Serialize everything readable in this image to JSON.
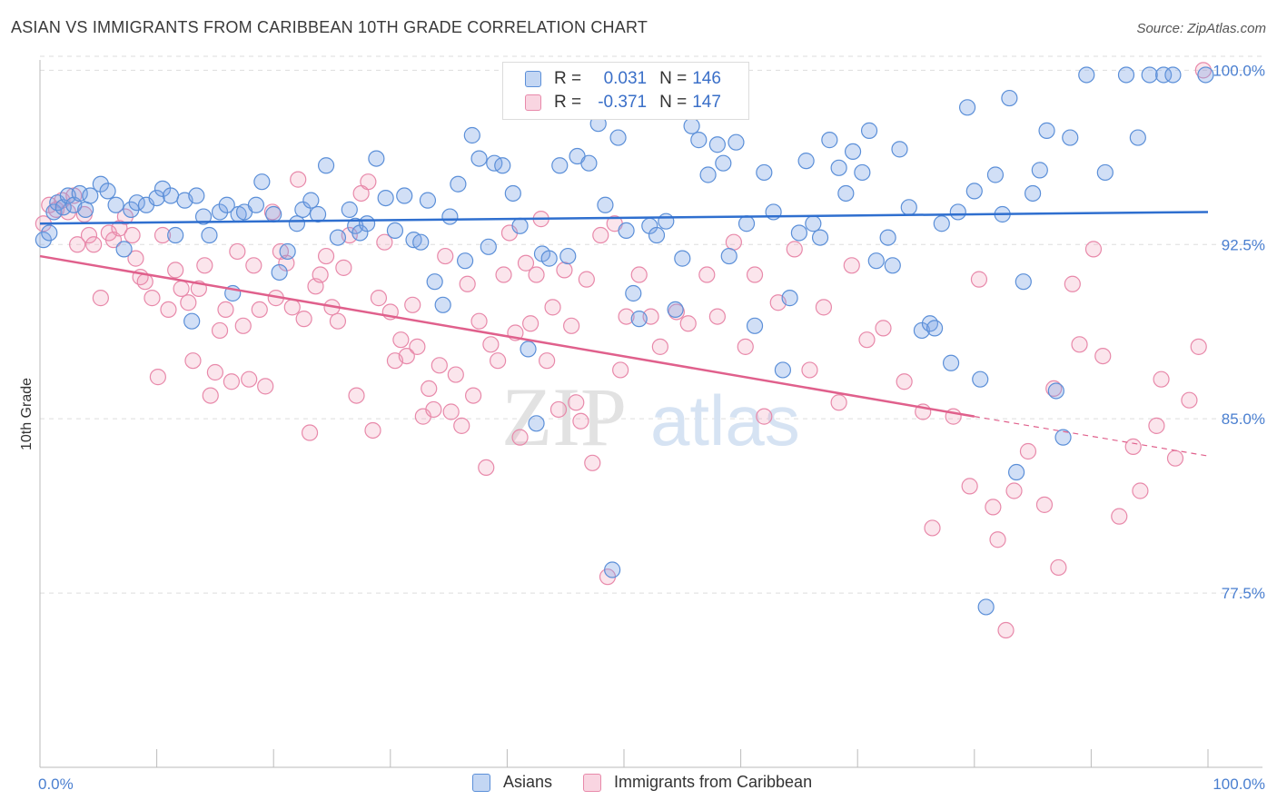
{
  "header": {
    "title": "ASIAN VS IMMIGRANTS FROM CARIBBEAN 10TH GRADE CORRELATION CHART",
    "source": "Source: ZipAtlas.com"
  },
  "watermark": {
    "part1": "ZIP",
    "part2": "atlas"
  },
  "legend": {
    "r_label": "R =",
    "n_label": "N =",
    "rows": [
      {
        "r_value": "0.031",
        "n_value": "146",
        "color": "#7fa8e6"
      },
      {
        "r_value": "-0.371",
        "n_value": "147",
        "color": "#f0a0bc"
      }
    ]
  },
  "bottom_legend": [
    {
      "label": "Asians",
      "color": "#7fa8e6"
    },
    {
      "label": "Immigrants from Caribbean",
      "color": "#f0a0bc"
    }
  ],
  "colors": {
    "asian_fill": "rgba(122,164,228,0.35)",
    "asian_stroke": "#5b8fd8",
    "asian_line": "#2f6fcf",
    "carib_fill": "rgba(240,150,180,0.25)",
    "carib_stroke": "#e889aa",
    "carib_line": "#e0608c",
    "tick_text": "#4a7fd0",
    "grid": "#dddddd"
  },
  "chart_data": {
    "type": "scatter",
    "title": "ASIAN VS IMMIGRANTS FROM CARIBBEAN 10TH GRADE CORRELATION CHART",
    "xlabel": "",
    "ylabel": "10th Grade",
    "x_tick_labels": [
      "0.0%",
      "100.0%"
    ],
    "y_tick_labels": [
      "100.0%",
      "92.5%",
      "85.0%",
      "77.5%"
    ],
    "y_ticks": [
      100.0,
      92.5,
      85.0,
      77.5
    ],
    "xlim": [
      0,
      100
    ],
    "ylim": [
      70.0,
      100.6
    ],
    "grid": true,
    "series": [
      {
        "name": "Asians",
        "r": 0.031,
        "n": 146,
        "trend": {
          "x0": 0,
          "y0": 93.4,
          "x1": 100,
          "y1": 93.9
        },
        "points": [
          [
            0.3,
            92.7
          ],
          [
            0.8,
            93.0
          ],
          [
            1.2,
            93.9
          ],
          [
            1.5,
            94.3
          ],
          [
            2.0,
            94.1
          ],
          [
            2.4,
            94.6
          ],
          [
            2.9,
            94.2
          ],
          [
            3.4,
            94.7
          ],
          [
            3.9,
            94.0
          ],
          [
            4.3,
            94.6
          ],
          [
            5.2,
            95.1
          ],
          [
            5.8,
            94.8
          ],
          [
            6.5,
            94.2
          ],
          [
            7.2,
            92.3
          ],
          [
            7.8,
            94.0
          ],
          [
            8.3,
            94.3
          ],
          [
            9.1,
            94.2
          ],
          [
            10.0,
            94.5
          ],
          [
            10.5,
            94.9
          ],
          [
            11.2,
            94.6
          ],
          [
            11.6,
            92.9
          ],
          [
            12.4,
            94.4
          ],
          [
            13.0,
            89.2
          ],
          [
            13.4,
            94.6
          ],
          [
            14.0,
            93.7
          ],
          [
            14.5,
            92.9
          ],
          [
            15.4,
            93.9
          ],
          [
            16.0,
            94.2
          ],
          [
            16.5,
            90.4
          ],
          [
            17.0,
            93.8
          ],
          [
            17.5,
            93.9
          ],
          [
            18.5,
            94.2
          ],
          [
            19.0,
            95.2
          ],
          [
            20.0,
            93.8
          ],
          [
            20.5,
            91.3
          ],
          [
            21.2,
            92.2
          ],
          [
            22.0,
            93.4
          ],
          [
            22.5,
            94.0
          ],
          [
            23.2,
            94.4
          ],
          [
            23.8,
            93.8
          ],
          [
            24.5,
            95.9
          ],
          [
            25.5,
            92.8
          ],
          [
            26.5,
            94.0
          ],
          [
            27.0,
            93.3
          ],
          [
            27.4,
            93.0
          ],
          [
            28.0,
            93.4
          ],
          [
            28.8,
            96.2
          ],
          [
            29.6,
            94.5
          ],
          [
            30.4,
            93.1
          ],
          [
            31.2,
            94.6
          ],
          [
            32.0,
            92.7
          ],
          [
            32.6,
            92.6
          ],
          [
            33.2,
            94.4
          ],
          [
            33.8,
            90.9
          ],
          [
            34.5,
            89.9
          ],
          [
            35.1,
            93.7
          ],
          [
            35.8,
            95.1
          ],
          [
            36.4,
            91.8
          ],
          [
            37.0,
            97.2
          ],
          [
            37.6,
            96.2
          ],
          [
            38.4,
            92.4
          ],
          [
            38.9,
            96.0
          ],
          [
            39.6,
            95.9
          ],
          [
            40.5,
            94.7
          ],
          [
            41.1,
            93.3
          ],
          [
            41.8,
            88.0
          ],
          [
            42.5,
            84.8
          ],
          [
            43.0,
            92.1
          ],
          [
            43.6,
            91.9
          ],
          [
            44.5,
            95.9
          ],
          [
            45.2,
            92.0
          ],
          [
            46.0,
            96.3
          ],
          [
            47.0,
            96.0
          ],
          [
            47.8,
            97.7
          ],
          [
            48.4,
            94.2
          ],
          [
            49.0,
            78.5
          ],
          [
            49.5,
            97.1
          ],
          [
            50.2,
            93.1
          ],
          [
            50.8,
            90.4
          ],
          [
            51.3,
            89.3
          ],
          [
            52.2,
            93.3
          ],
          [
            52.8,
            92.9
          ],
          [
            53.6,
            93.5
          ],
          [
            54.4,
            89.7
          ],
          [
            55.0,
            91.9
          ],
          [
            55.8,
            97.6
          ],
          [
            56.4,
            97.0
          ],
          [
            57.2,
            95.5
          ],
          [
            58.0,
            96.8
          ],
          [
            58.5,
            96.0
          ],
          [
            59.0,
            92.0
          ],
          [
            59.6,
            96.9
          ],
          [
            60.5,
            93.4
          ],
          [
            61.2,
            89.0
          ],
          [
            62.0,
            95.6
          ],
          [
            62.8,
            93.9
          ],
          [
            63.6,
            87.1
          ],
          [
            64.2,
            90.2
          ],
          [
            65.0,
            93.0
          ],
          [
            65.6,
            96.1
          ],
          [
            66.2,
            93.4
          ],
          [
            66.8,
            92.8
          ],
          [
            67.6,
            97.0
          ],
          [
            68.4,
            95.8
          ],
          [
            69.0,
            94.7
          ],
          [
            69.6,
            96.5
          ],
          [
            70.4,
            95.6
          ],
          [
            71.0,
            97.4
          ],
          [
            71.6,
            91.8
          ],
          [
            72.6,
            92.8
          ],
          [
            73.0,
            91.6
          ],
          [
            73.6,
            96.6
          ],
          [
            74.4,
            94.1
          ],
          [
            75.5,
            88.8
          ],
          [
            76.2,
            89.1
          ],
          [
            76.6,
            88.9
          ],
          [
            77.2,
            93.4
          ],
          [
            78.0,
            87.4
          ],
          [
            78.6,
            93.9
          ],
          [
            79.4,
            98.4
          ],
          [
            80.0,
            94.8
          ],
          [
            80.5,
            86.7
          ],
          [
            81.0,
            76.9
          ],
          [
            81.8,
            95.5
          ],
          [
            82.4,
            93.8
          ],
          [
            83.0,
            98.8
          ],
          [
            83.6,
            82.7
          ],
          [
            84.2,
            90.9
          ],
          [
            85.0,
            94.7
          ],
          [
            85.6,
            95.7
          ],
          [
            86.2,
            97.4
          ],
          [
            87.0,
            86.2
          ],
          [
            87.6,
            84.2
          ],
          [
            88.2,
            97.1
          ],
          [
            89.6,
            99.8
          ],
          [
            91.2,
            95.6
          ],
          [
            93.0,
            99.8
          ],
          [
            94.0,
            97.1
          ],
          [
            95.0,
            99.8
          ],
          [
            96.2,
            99.8
          ],
          [
            97.0,
            99.8
          ],
          [
            99.8,
            99.8
          ]
        ]
      },
      {
        "name": "Immigrants from Caribbean",
        "r": -0.371,
        "n": 147,
        "trend": {
          "x0": 0,
          "y0": 92.0,
          "x1": 80,
          "y1": 85.1,
          "dashed_to": {
            "x": 100,
            "y": 83.4
          }
        },
        "points": [
          [
            0.3,
            93.4
          ],
          [
            0.8,
            94.2
          ],
          [
            1.4,
            94.0
          ],
          [
            1.9,
            94.4
          ],
          [
            2.4,
            93.9
          ],
          [
            2.9,
            94.6
          ],
          [
            3.2,
            92.5
          ],
          [
            3.8,
            93.8
          ],
          [
            4.2,
            92.9
          ],
          [
            4.6,
            92.5
          ],
          [
            5.2,
            90.2
          ],
          [
            5.9,
            93.0
          ],
          [
            6.3,
            92.7
          ],
          [
            6.8,
            93.2
          ],
          [
            7.3,
            93.7
          ],
          [
            7.9,
            92.9
          ],
          [
            8.2,
            91.9
          ],
          [
            8.6,
            91.1
          ],
          [
            9.0,
            90.9
          ],
          [
            9.6,
            90.2
          ],
          [
            10.1,
            86.8
          ],
          [
            10.5,
            92.9
          ],
          [
            11.0,
            89.7
          ],
          [
            11.6,
            91.4
          ],
          [
            12.1,
            90.6
          ],
          [
            12.7,
            90.0
          ],
          [
            13.1,
            87.5
          ],
          [
            13.6,
            90.6
          ],
          [
            14.1,
            91.6
          ],
          [
            14.6,
            86.0
          ],
          [
            15.0,
            87.0
          ],
          [
            15.4,
            88.8
          ],
          [
            15.9,
            89.7
          ],
          [
            16.4,
            86.6
          ],
          [
            16.9,
            92.2
          ],
          [
            17.4,
            89.0
          ],
          [
            17.9,
            86.7
          ],
          [
            18.3,
            91.6
          ],
          [
            18.8,
            89.7
          ],
          [
            19.3,
            86.4
          ],
          [
            19.9,
            93.9
          ],
          [
            20.2,
            90.2
          ],
          [
            20.6,
            92.2
          ],
          [
            21.1,
            91.7
          ],
          [
            21.6,
            89.8
          ],
          [
            22.1,
            95.3
          ],
          [
            22.6,
            89.3
          ],
          [
            23.1,
            84.4
          ],
          [
            23.6,
            90.7
          ],
          [
            24.0,
            91.2
          ],
          [
            24.5,
            92.0
          ],
          [
            25.0,
            89.8
          ],
          [
            25.5,
            89.2
          ],
          [
            26.0,
            91.5
          ],
          [
            26.5,
            92.9
          ],
          [
            27.1,
            86.0
          ],
          [
            27.5,
            94.7
          ],
          [
            28.1,
            95.2
          ],
          [
            28.5,
            84.5
          ],
          [
            29.0,
            90.2
          ],
          [
            29.5,
            92.6
          ],
          [
            30.0,
            89.6
          ],
          [
            30.4,
            87.5
          ],
          [
            30.9,
            88.4
          ],
          [
            31.4,
            87.7
          ],
          [
            31.9,
            89.9
          ],
          [
            32.3,
            88.1
          ],
          [
            32.8,
            85.1
          ],
          [
            33.3,
            86.3
          ],
          [
            33.7,
            85.4
          ],
          [
            34.2,
            87.3
          ],
          [
            34.7,
            92.0
          ],
          [
            35.2,
            85.3
          ],
          [
            35.6,
            86.9
          ],
          [
            36.1,
            84.7
          ],
          [
            36.6,
            90.8
          ],
          [
            37.1,
            86.0
          ],
          [
            37.6,
            89.2
          ],
          [
            38.2,
            82.9
          ],
          [
            38.6,
            88.2
          ],
          [
            39.2,
            87.5
          ],
          [
            39.7,
            91.2
          ],
          [
            40.2,
            93.0
          ],
          [
            40.7,
            88.7
          ],
          [
            41.1,
            84.2
          ],
          [
            41.6,
            91.7
          ],
          [
            42.0,
            89.1
          ],
          [
            42.5,
            91.2
          ],
          [
            42.9,
            93.6
          ],
          [
            43.4,
            87.5
          ],
          [
            43.9,
            89.8
          ],
          [
            44.4,
            85.4
          ],
          [
            44.9,
            91.4
          ],
          [
            45.5,
            89.0
          ],
          [
            45.9,
            85.7
          ],
          [
            46.3,
            84.9
          ],
          [
            46.8,
            91.0
          ],
          [
            47.3,
            83.1
          ],
          [
            48.0,
            92.9
          ],
          [
            48.6,
            78.2
          ],
          [
            49.2,
            93.4
          ],
          [
            49.7,
            87.1
          ],
          [
            50.2,
            89.4
          ],
          [
            51.3,
            91.2
          ],
          [
            52.3,
            89.4
          ],
          [
            53.1,
            88.1
          ],
          [
            54.5,
            89.6
          ],
          [
            55.5,
            89.1
          ],
          [
            57.1,
            91.2
          ],
          [
            58.0,
            89.4
          ],
          [
            59.4,
            92.6
          ],
          [
            60.4,
            88.1
          ],
          [
            61.2,
            91.2
          ],
          [
            62.0,
            85.1
          ],
          [
            63.2,
            90.0
          ],
          [
            64.6,
            92.3
          ],
          [
            65.9,
            87.1
          ],
          [
            67.1,
            89.8
          ],
          [
            68.4,
            85.7
          ],
          [
            69.5,
            91.6
          ],
          [
            70.8,
            88.4
          ],
          [
            72.2,
            88.9
          ],
          [
            74.0,
            86.6
          ],
          [
            75.6,
            85.3
          ],
          [
            76.4,
            80.3
          ],
          [
            78.2,
            85.1
          ],
          [
            79.6,
            82.1
          ],
          [
            80.4,
            91.0
          ],
          [
            81.6,
            81.2
          ],
          [
            82.0,
            79.8
          ],
          [
            82.7,
            75.9
          ],
          [
            83.4,
            81.9
          ],
          [
            84.6,
            83.6
          ],
          [
            86.0,
            81.3
          ],
          [
            86.8,
            86.3
          ],
          [
            87.2,
            78.6
          ],
          [
            88.4,
            90.8
          ],
          [
            89.0,
            88.2
          ],
          [
            90.2,
            92.3
          ],
          [
            91.0,
            87.7
          ],
          [
            92.4,
            80.8
          ],
          [
            93.6,
            83.8
          ],
          [
            94.2,
            81.9
          ],
          [
            95.6,
            84.7
          ],
          [
            96.0,
            86.7
          ],
          [
            97.2,
            83.3
          ],
          [
            98.4,
            85.8
          ],
          [
            99.2,
            88.1
          ],
          [
            99.6,
            100.0
          ]
        ]
      }
    ]
  }
}
